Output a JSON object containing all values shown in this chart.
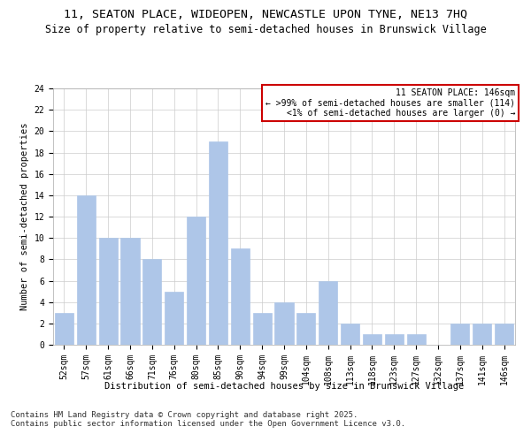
{
  "title": "11, SEATON PLACE, WIDEOPEN, NEWCASTLE UPON TYNE, NE13 7HQ",
  "subtitle": "Size of property relative to semi-detached houses in Brunswick Village",
  "xlabel": "Distribution of semi-detached houses by size in Brunswick Village",
  "ylabel": "Number of semi-detached properties",
  "footer_line1": "Contains HM Land Registry data © Crown copyright and database right 2025.",
  "footer_line2": "Contains public sector information licensed under the Open Government Licence v3.0.",
  "categories": [
    "52sqm",
    "57sqm",
    "61sqm",
    "66sqm",
    "71sqm",
    "76sqm",
    "80sqm",
    "85sqm",
    "90sqm",
    "94sqm",
    "99sqm",
    "104sqm",
    "108sqm",
    "113sqm",
    "118sqm",
    "123sqm",
    "127sqm",
    "132sqm",
    "137sqm",
    "141sqm",
    "146sqm"
  ],
  "values": [
    3,
    14,
    10,
    10,
    8,
    5,
    12,
    19,
    9,
    3,
    4,
    3,
    6,
    2,
    1,
    1,
    1,
    0,
    2,
    2,
    2
  ],
  "bar_color": "#aec6e8",
  "bar_edge_color": "#aec6e8",
  "highlight_index": 20,
  "annotation_title": "11 SEATON PLACE: 146sqm",
  "annotation_line2": "← >99% of semi-detached houses are smaller (114)",
  "annotation_line3": "<1% of semi-detached houses are larger (0) →",
  "annotation_box_color": "#cc0000",
  "ylim": [
    0,
    24
  ],
  "yticks": [
    0,
    2,
    4,
    6,
    8,
    10,
    12,
    14,
    16,
    18,
    20,
    22,
    24
  ],
  "background_color": "#ffffff",
  "grid_color": "#cccccc",
  "title_fontsize": 9.5,
  "subtitle_fontsize": 8.5,
  "axis_label_fontsize": 7.5,
  "tick_fontsize": 7,
  "annotation_fontsize": 7,
  "footer_fontsize": 6.5
}
